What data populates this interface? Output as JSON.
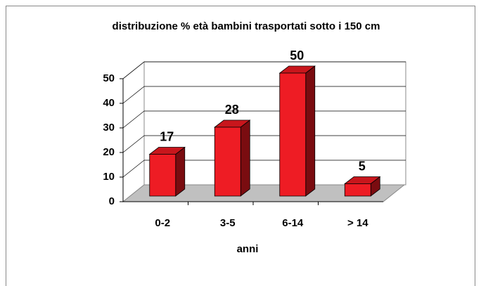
{
  "chart_data": {
    "type": "bar3d",
    "title": "distribuzione % età bambini trasportati sotto i 150 cm",
    "x_label": "anni",
    "categories": [
      "0-2",
      "3-5",
      "6-14",
      "> 14"
    ],
    "values": [
      17,
      28,
      50,
      5
    ],
    "color": "#ee1c24",
    "ylim": [
      0,
      50
    ],
    "yticks": [
      0,
      10,
      20,
      30,
      40,
      50
    ],
    "grid": true
  }
}
